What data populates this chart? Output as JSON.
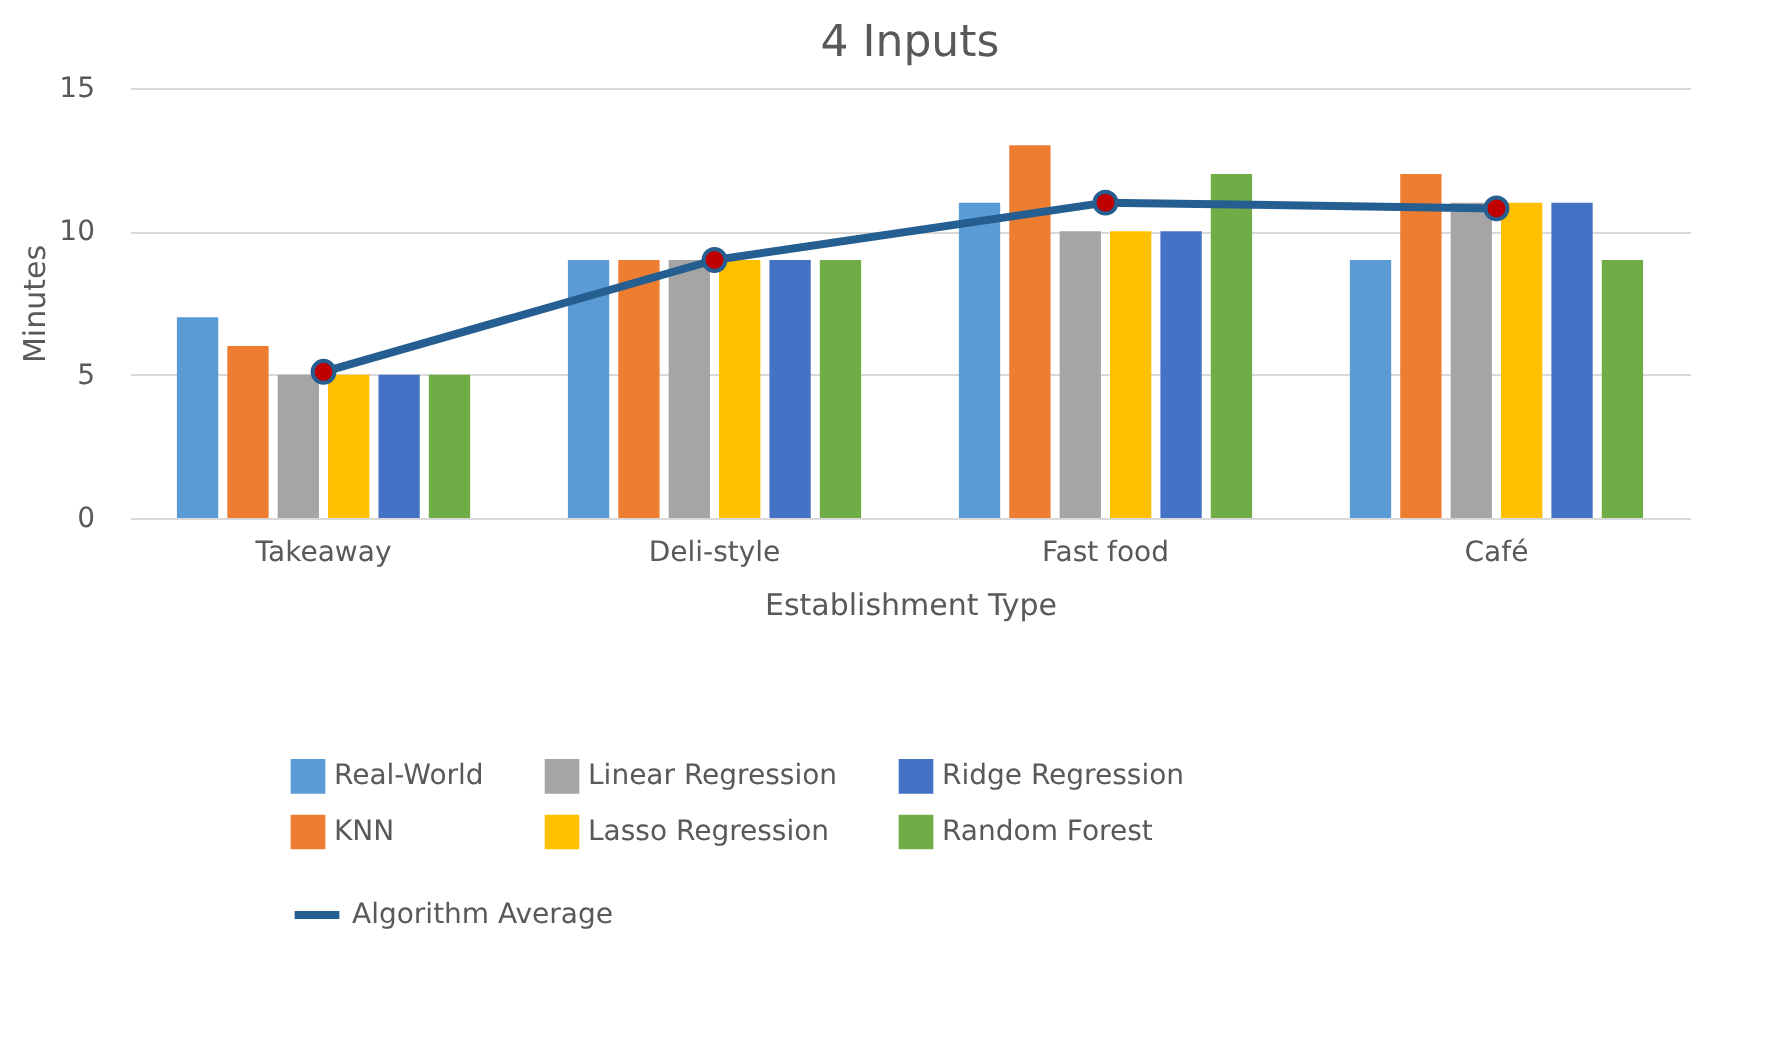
{
  "chart_data": {
    "type": "bar",
    "title": "4 Inputs",
    "xlabel": "Establishment Type",
    "ylabel": "Minutes",
    "categories": [
      "Takeaway",
      "Deli-style",
      "Fast food",
      "Café"
    ],
    "series": [
      {
        "name": "Real-World",
        "color": "#5b9bd5",
        "values": [
          7,
          9,
          11,
          9
        ]
      },
      {
        "name": "KNN",
        "color": "#ed7d31",
        "values": [
          6,
          9,
          13,
          12
        ]
      },
      {
        "name": "Linear Regression",
        "color": "#a5a5a5",
        "values": [
          5,
          9,
          10,
          11
        ]
      },
      {
        "name": "Lasso Regression",
        "color": "#ffc000",
        "values": [
          5,
          9,
          10,
          11
        ]
      },
      {
        "name": "Ridge Regression",
        "color": "#4472c4",
        "values": [
          5,
          9,
          10,
          11
        ]
      },
      {
        "name": "Random Forest",
        "color": "#70ad47",
        "values": [
          5,
          9,
          12,
          9
        ]
      },
      {
        "name": "Algorithm Average",
        "color": "#255e91",
        "type": "line",
        "marker": "circle",
        "values": [
          5.1,
          9,
          11,
          10.8
        ]
      }
    ],
    "ylim": [
      0,
      15
    ],
    "yticks": [
      0,
      5,
      10,
      15
    ],
    "grid": "y",
    "legend": "bottom"
  }
}
